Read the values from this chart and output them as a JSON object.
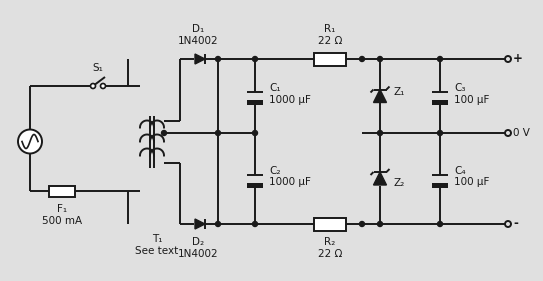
{
  "bg_color": "#e0e0e0",
  "line_color": "#1a1a1a",
  "lw": 1.4,
  "components": {
    "S1_label": "S₁",
    "F1_label": "F₁\n500 mA",
    "T1_label": "T₁\nSee text",
    "D1_label": "D₁\n1N4002",
    "D2_label": "D₂\n1N4002",
    "C1_label": "C₁\n1000 μF",
    "C2_label": "C₂\n1000 μF",
    "C3_label": "C₃\n100 μF",
    "C4_label": "C₄\n100 μF",
    "R1_label": "R₁\n22 Ω",
    "R2_label": "R₂\n22 Ω",
    "Z1_label": "Z₁",
    "Z2_label": "Z₂",
    "out_pos": "+",
    "out_zero": "0 V",
    "out_neg": "-"
  }
}
